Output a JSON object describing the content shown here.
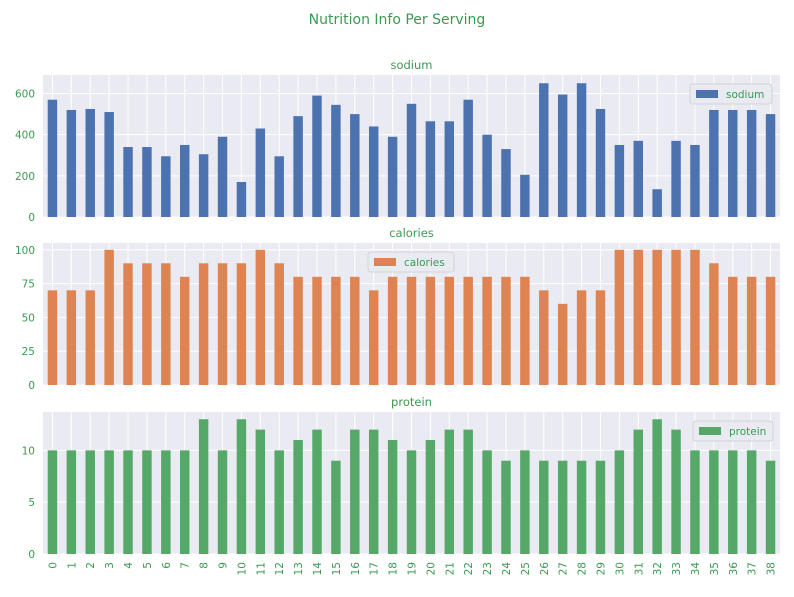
{
  "chart_data": {
    "type": "bar",
    "title": "Nutrition Info Per Serving",
    "title_color": "#3a9a52",
    "text_color": "#3a9a52",
    "background": "#eaeaf2",
    "grid": true,
    "categories": [
      "0",
      "1",
      "2",
      "3",
      "4",
      "5",
      "6",
      "7",
      "8",
      "9",
      "10",
      "11",
      "12",
      "13",
      "14",
      "15",
      "16",
      "17",
      "18",
      "19",
      "20",
      "21",
      "22",
      "23",
      "24",
      "25",
      "26",
      "27",
      "28",
      "29",
      "30",
      "31",
      "32",
      "33",
      "34",
      "35",
      "36",
      "37",
      "38"
    ],
    "subplots": [
      {
        "title": "sodium",
        "series_name": "sodium",
        "color": "#4c72b0",
        "ylim": [
          0,
          690
        ],
        "yticks": [
          0,
          200,
          400,
          600
        ],
        "legend": "upper right",
        "values": [
          570,
          520,
          525,
          510,
          340,
          340,
          295,
          350,
          305,
          390,
          170,
          430,
          295,
          490,
          590,
          545,
          500,
          440,
          390,
          550,
          465,
          465,
          570,
          400,
          330,
          205,
          650,
          595,
          650,
          525,
          350,
          370,
          135,
          370,
          350,
          520,
          520,
          520,
          500
        ]
      },
      {
        "title": "calories",
        "series_name": "calories",
        "color": "#dd8452",
        "ylim": [
          0,
          105
        ],
        "yticks": [
          0,
          25,
          50,
          75,
          100
        ],
        "legend": "upper center",
        "values": [
          70,
          70,
          70,
          100,
          90,
          90,
          90,
          80,
          90,
          90,
          90,
          100,
          90,
          80,
          80,
          80,
          80,
          70,
          80,
          80,
          80,
          80,
          80,
          80,
          80,
          80,
          70,
          60,
          70,
          70,
          100,
          100,
          100,
          100,
          100,
          90,
          80,
          80,
          80
        ]
      },
      {
        "title": "protein",
        "series_name": "protein",
        "color": "#55a868",
        "ylim": [
          0,
          13.7
        ],
        "yticks": [
          0,
          5,
          10
        ],
        "legend": "upper right",
        "values": [
          10,
          10,
          10,
          10,
          10,
          10,
          10,
          10,
          13,
          10,
          13,
          12,
          10,
          11,
          12,
          9,
          12,
          12,
          11,
          10,
          11,
          12,
          12,
          10,
          9,
          10,
          9,
          9,
          9,
          9,
          10,
          12,
          13,
          12,
          10,
          10,
          10,
          10,
          9
        ]
      }
    ]
  }
}
